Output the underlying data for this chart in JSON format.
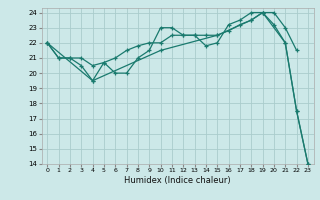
{
  "title": "",
  "xlabel": "Humidex (Indice chaleur)",
  "bg_color": "#cce8e8",
  "grid_color": "#aacccc",
  "line_color": "#1a7a6e",
  "xlim": [
    -0.5,
    23.5
  ],
  "ylim": [
    14,
    24.3
  ],
  "xticks": [
    0,
    1,
    2,
    3,
    4,
    5,
    6,
    7,
    8,
    9,
    10,
    11,
    12,
    13,
    14,
    15,
    16,
    17,
    18,
    19,
    20,
    21,
    22,
    23
  ],
  "yticks": [
    14,
    15,
    16,
    17,
    18,
    19,
    20,
    21,
    22,
    23,
    24
  ],
  "lines": [
    [
      [
        0,
        22
      ],
      [
        1,
        21
      ],
      [
        2,
        21
      ],
      [
        3,
        21
      ],
      [
        4,
        20.5
      ],
      [
        5,
        20.7
      ],
      [
        6,
        21
      ],
      [
        7,
        21.5
      ],
      [
        8,
        21.8
      ],
      [
        9,
        22
      ],
      [
        10,
        22
      ],
      [
        11,
        22.5
      ],
      [
        12,
        22.5
      ],
      [
        13,
        22.5
      ],
      [
        14,
        22.5
      ],
      [
        15,
        22.5
      ],
      [
        16,
        22.8
      ],
      [
        17,
        23.2
      ],
      [
        18,
        23.5
      ],
      [
        19,
        24
      ],
      [
        20,
        24
      ],
      [
        21,
        23
      ],
      [
        22,
        21.5
      ]
    ],
    [
      [
        0,
        22
      ],
      [
        1,
        21
      ],
      [
        2,
        21
      ],
      [
        3,
        20.5
      ],
      [
        4,
        19.5
      ],
      [
        5,
        20.7
      ],
      [
        6,
        20
      ],
      [
        7,
        20
      ],
      [
        8,
        21
      ],
      [
        9,
        21.5
      ],
      [
        10,
        23
      ],
      [
        11,
        23
      ],
      [
        12,
        22.5
      ],
      [
        13,
        22.5
      ],
      [
        14,
        21.8
      ],
      [
        15,
        22
      ],
      [
        16,
        23.2
      ],
      [
        17,
        23.5
      ],
      [
        18,
        24
      ],
      [
        19,
        24
      ],
      [
        20,
        23.2
      ],
      [
        21,
        22
      ],
      [
        22,
        17.5
      ],
      [
        23,
        14
      ]
    ],
    [
      [
        0,
        22
      ],
      [
        4,
        19.5
      ],
      [
        10,
        21.5
      ],
      [
        15,
        22.5
      ],
      [
        18,
        23.5
      ],
      [
        19,
        24
      ],
      [
        21,
        22
      ],
      [
        22,
        17.5
      ],
      [
        23,
        14
      ]
    ]
  ]
}
